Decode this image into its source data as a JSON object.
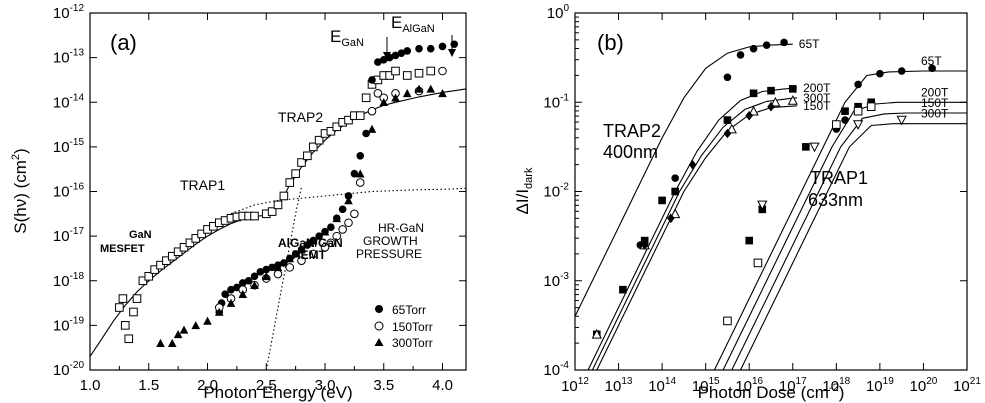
{
  "chart_data": [
    {
      "panel": "(a)",
      "type": "scatter",
      "xlabel_text": "Photon Energy (eV)",
      "ylabel": {
        "base": "S(hν) (cm",
        "sup": "2",
        "tail": ")"
      },
      "xlim": [
        1.0,
        4.2
      ],
      "ylim_log10": [
        -20,
        -12
      ],
      "y_scale": "log",
      "x_ticks": [
        "1.0",
        "1.5",
        "2.0",
        "2.5",
        "3.0",
        "3.5",
        "4.0"
      ],
      "x_tick_values": [
        1.0,
        1.5,
        2.0,
        2.5,
        3.0,
        3.5,
        4.0
      ],
      "y_tick_exponents": [
        -20,
        -19,
        -18,
        -17,
        -16,
        -15,
        -14,
        -13,
        -12
      ],
      "annotations": {
        "e_gan": {
          "main": "E",
          "sub": "GaN"
        },
        "e_algan": {
          "main": "E",
          "sub": "AlGaN"
        },
        "trap1": "TRAP1",
        "trap2": "TRAP2",
        "gan_line1": "GaN",
        "gan_line2": "MESFET",
        "algan_line1": "AlGaN/GaN",
        "algan_line2": "HEMT",
        "hr_line1": "HR-GaN",
        "hr_line2": "GROWTH",
        "hr_line3": "PRESSURE"
      },
      "legend": [
        {
          "label": "65Torr",
          "marker": "filled-circle"
        },
        {
          "label": "150Torr",
          "marker": "open-circle"
        },
        {
          "label": "300Torr",
          "marker": "filled-triangle"
        }
      ],
      "series": [
        {
          "marker": "open-square",
          "x": [
            1.25,
            1.28,
            1.3,
            1.33,
            1.37,
            1.4,
            1.45,
            1.5,
            1.55,
            1.6,
            1.65,
            1.7,
            1.75,
            1.8,
            1.85,
            1.9,
            1.95,
            2.0,
            2.05,
            2.1,
            2.15,
            2.2,
            2.25,
            2.3,
            2.35,
            2.4,
            2.5,
            2.55,
            2.6,
            2.65,
            2.7,
            2.75,
            2.8,
            2.85,
            2.9,
            2.95,
            3.0,
            3.05,
            3.1,
            3.15,
            3.2,
            3.25,
            3.3,
            3.35,
            3.4,
            3.45,
            3.5,
            3.55,
            3.6,
            3.7,
            3.8,
            3.9
          ],
          "logy": [
            -18.6,
            -18.4,
            -19.0,
            -19.3,
            -18.7,
            -18.4,
            -18.0,
            -17.9,
            -17.75,
            -17.65,
            -17.55,
            -17.45,
            -17.35,
            -17.25,
            -17.15,
            -17.05,
            -16.95,
            -16.85,
            -16.78,
            -16.7,
            -16.65,
            -16.6,
            -16.57,
            -16.55,
            -16.55,
            -16.55,
            -16.5,
            -16.45,
            -16.3,
            -16.1,
            -15.8,
            -15.6,
            -15.35,
            -15.2,
            -15.0,
            -14.85,
            -14.7,
            -14.65,
            -14.55,
            -14.45,
            -14.4,
            -14.3,
            -14.3,
            -13.9,
            -13.6,
            -13.5,
            -13.4,
            -13.4,
            -13.3,
            -13.4,
            -13.35,
            -13.3
          ]
        },
        {
          "marker": "filled-circle",
          "x": [
            2.1,
            2.12,
            2.15,
            2.2,
            2.25,
            2.3,
            2.35,
            2.4,
            2.45,
            2.5,
            2.55,
            2.6,
            2.65,
            2.7,
            2.75,
            2.8,
            2.85,
            2.9,
            2.95,
            3.0,
            3.05,
            3.1,
            3.15,
            3.2,
            3.25,
            3.3,
            3.35,
            3.4,
            3.45,
            3.5,
            3.55,
            3.6,
            3.65,
            3.7,
            3.8,
            3.9,
            4.0,
            4.1
          ],
          "logy": [
            -18.7,
            -18.5,
            -18.3,
            -18.2,
            -18.15,
            -18.05,
            -18.0,
            -17.9,
            -17.8,
            -17.75,
            -17.7,
            -17.65,
            -17.6,
            -17.5,
            -17.4,
            -17.3,
            -17.2,
            -17.1,
            -17.0,
            -16.9,
            -16.8,
            -16.6,
            -16.4,
            -16.1,
            -15.6,
            -15.2,
            -14.7,
            -13.5,
            -13.1,
            -13.05,
            -13.0,
            -12.95,
            -12.9,
            -12.85,
            -12.8,
            -12.8,
            -12.75,
            -12.7
          ]
        },
        {
          "marker": "open-circle",
          "x": [
            2.1,
            2.2,
            2.3,
            2.4,
            2.5,
            2.6,
            2.7,
            2.8,
            2.9,
            3.0,
            3.05,
            3.1,
            3.15,
            3.2,
            3.25,
            3.3,
            3.4,
            3.45,
            3.5,
            3.6,
            3.8,
            4.0
          ],
          "logy": [
            -18.6,
            -18.4,
            -18.2,
            -18.1,
            -17.95,
            -17.85,
            -17.7,
            -17.55,
            -17.4,
            -17.25,
            -17.15,
            -17.0,
            -16.85,
            -16.7,
            -16.5,
            -15.8,
            -14.2,
            -13.8,
            -13.9,
            -13.8,
            -13.75,
            -13.3
          ]
        },
        {
          "marker": "filled-triangle",
          "x": [
            1.6,
            1.7,
            1.75,
            1.8,
            1.9,
            2.0,
            2.1,
            2.2,
            2.3,
            2.4,
            2.5,
            2.6,
            2.7,
            2.8,
            2.9,
            3.0,
            3.1,
            3.2,
            3.3,
            3.4,
            3.5,
            3.6,
            3.7,
            3.8,
            3.9,
            4.0
          ],
          "logy": [
            -19.4,
            -19.4,
            -19.2,
            -19.1,
            -19.0,
            -18.9,
            -18.7,
            -18.5,
            -18.3,
            -18.1,
            -17.9,
            -17.7,
            -17.5,
            -17.3,
            -17.1,
            -16.9,
            -16.6,
            -16.2,
            -15.6,
            -14.6,
            -14.0,
            -13.9,
            -13.8,
            -13.7,
            -13.7,
            -13.8
          ]
        }
      ],
      "fit_curves": [
        {
          "style": "solid",
          "x": [
            1.0,
            1.1,
            1.2,
            1.3,
            1.4,
            1.5,
            1.6,
            1.7,
            1.8,
            1.9,
            2.0,
            2.1,
            2.2,
            2.3,
            2.4,
            2.5,
            2.55,
            2.6,
            2.65,
            2.7,
            2.75,
            2.8,
            2.9,
            3.0,
            3.1,
            3.2,
            3.3,
            3.4,
            3.5,
            3.6,
            3.8,
            4.0,
            4.2
          ],
          "logy": [
            -19.7,
            -19.3,
            -18.9,
            -18.55,
            -18.25,
            -18.0,
            -17.78,
            -17.58,
            -17.38,
            -17.18,
            -17.0,
            -16.85,
            -16.72,
            -16.62,
            -16.56,
            -16.53,
            -16.48,
            -16.35,
            -16.1,
            -15.85,
            -15.65,
            -15.45,
            -15.12,
            -14.85,
            -14.62,
            -14.45,
            -14.3,
            -14.17,
            -14.07,
            -14.0,
            -13.88,
            -13.78,
            -13.7
          ]
        },
        {
          "style": "dotted",
          "x": [
            2.2,
            2.4,
            2.6,
            2.8,
            3.0,
            3.2,
            3.4,
            3.6,
            3.8,
            4.0,
            4.2
          ],
          "logy": [
            -16.5,
            -16.3,
            -16.2,
            -16.15,
            -16.1,
            -16.05,
            -16.0,
            -15.98,
            -15.96,
            -15.95,
            -15.93
          ]
        },
        {
          "style": "dotted",
          "x": [
            2.5,
            2.55,
            2.6,
            2.65,
            2.7,
            2.75,
            2.8
          ],
          "logy": [
            -20.0,
            -19.3,
            -18.6,
            -17.9,
            -17.2,
            -16.5,
            -15.9
          ]
        }
      ]
    },
    {
      "panel": "(b)",
      "type": "scatter",
      "xlabel": {
        "base": "Photon Dose (cm",
        "sup": "-2",
        "tail": ")"
      },
      "ylabel": {
        "main": "ΔI/I",
        "sub": "dark"
      },
      "x_scale": "log",
      "y_scale": "log",
      "xlim_log10": [
        12,
        21
      ],
      "ylim_log10": [
        -4,
        0
      ],
      "x_tick_exponents": [
        12,
        13,
        14,
        15,
        16,
        17,
        18,
        19,
        20,
        21
      ],
      "y_tick_exponents": [
        -4,
        -3,
        -2,
        -1,
        0
      ],
      "annotations": {
        "trap2_line1": "TRAP2",
        "trap2_line2": "400nm",
        "trap1_line1": "TRAP1",
        "trap1_line2": "633nm"
      },
      "series": [
        {
          "name": "65T",
          "group": "TRAP2",
          "marker": "filled-circle",
          "logx": [
            13.5,
            14.3,
            15.5,
            15.8,
            16.1,
            16.4,
            16.8
          ],
          "logy": [
            -2.6,
            -1.85,
            -0.72,
            -0.47,
            -0.4,
            -0.36,
            -0.33
          ]
        },
        {
          "name": "200T",
          "group": "TRAP2",
          "marker": "filled-square",
          "logx": [
            12.5,
            13.1,
            13.6,
            14.0,
            14.3,
            15.5,
            16.1,
            16.5,
            17.0
          ],
          "logy": [
            -3.6,
            -3.1,
            -2.55,
            -2.1,
            -2.0,
            -1.2,
            -0.9,
            -0.87,
            -0.85
          ]
        },
        {
          "name": "300T",
          "group": "TRAP2",
          "marker": "open-triangle",
          "logx": [
            12.5,
            13.6,
            14.3,
            15.6,
            16.1,
            16.6,
            17.0
          ],
          "logy": [
            -3.6,
            -2.6,
            -2.25,
            -1.3,
            -1.1,
            -1.0,
            -0.98
          ]
        },
        {
          "name": "150T",
          "group": "TRAP2",
          "marker": "filled-diamond",
          "logx": [
            13.6,
            14.2,
            14.7,
            15.5,
            16.0,
            16.5
          ],
          "logy": [
            -2.6,
            -2.3,
            -1.7,
            -1.35,
            -1.15,
            -1.05
          ]
        },
        {
          "name": "65T",
          "group": "TRAP1",
          "marker": "filled-circle",
          "logx": [
            18.0,
            18.2,
            18.5,
            19.0,
            19.5,
            20.2
          ],
          "logy": [
            -1.3,
            -1.2,
            -0.8,
            -0.68,
            -0.65,
            -0.62
          ]
        },
        {
          "name": "200T",
          "group": "TRAP1",
          "marker": "filled-square",
          "logx": [
            16.0,
            16.3,
            17.3,
            18.2,
            18.5,
            18.8
          ],
          "logy": [
            -2.55,
            -2.2,
            -1.5,
            -1.1,
            -1.05,
            -1.0
          ]
        },
        {
          "name": "150T",
          "group": "TRAP1",
          "marker": "open-triangle-down",
          "logx": [
            16.3,
            17.5,
            18.5,
            19.5
          ],
          "logy": [
            -2.15,
            -1.5,
            -1.25,
            -1.2
          ]
        },
        {
          "name": "300T",
          "group": "TRAP1",
          "marker": "open-square",
          "logx": [
            15.5,
            16.2,
            18.0,
            18.5,
            18.8
          ],
          "logy": [
            -3.45,
            -2.8,
            -1.25,
            -1.1,
            -1.05
          ]
        }
      ],
      "fit_curves": [
        {
          "logx": [
            12.0,
            12.5,
            13.0,
            13.5,
            14.0,
            14.5,
            15.0,
            15.5,
            16.0,
            16.5,
            17.0
          ],
          "logy": [
            -3.4,
            -2.9,
            -2.4,
            -1.9,
            -1.4,
            -0.95,
            -0.62,
            -0.45,
            -0.38,
            -0.36,
            -0.35
          ],
          "end_label": "65T"
        },
        {
          "logx": [
            12.3,
            12.8,
            13.3,
            13.8,
            14.3,
            14.8,
            15.3,
            15.8,
            16.3,
            16.8,
            17.1
          ],
          "logy": [
            -4.0,
            -3.5,
            -3.0,
            -2.5,
            -2.0,
            -1.55,
            -1.2,
            -0.98,
            -0.88,
            -0.85,
            -0.84
          ],
          "end_label": "200T"
        },
        {
          "logx": [
            12.4,
            12.9,
            13.4,
            13.9,
            14.4,
            14.9,
            15.4,
            15.9,
            16.4,
            16.9,
            17.1
          ],
          "logy": [
            -4.0,
            -3.5,
            -3.0,
            -2.5,
            -2.0,
            -1.6,
            -1.28,
            -1.08,
            -0.99,
            -0.96,
            -0.95
          ],
          "end_label": "300T"
        },
        {
          "logx": [
            12.5,
            13.0,
            13.5,
            14.0,
            14.5,
            15.0,
            15.5,
            16.0,
            16.5,
            17.1
          ],
          "logy": [
            -4.0,
            -3.5,
            -3.0,
            -2.5,
            -2.0,
            -1.62,
            -1.32,
            -1.14,
            -1.06,
            -1.04
          ],
          "end_label": "150T"
        },
        {
          "logx": [
            15.2,
            15.7,
            16.2,
            16.7,
            17.2,
            17.7,
            18.2,
            18.7,
            19.2,
            20.0,
            21.0
          ],
          "logy": [
            -4.0,
            -3.5,
            -3.0,
            -2.5,
            -2.0,
            -1.5,
            -1.0,
            -0.7,
            -0.66,
            -0.65,
            -0.65
          ],
          "end_label": "65T"
        },
        {
          "logx": [
            15.4,
            15.9,
            16.4,
            16.9,
            17.4,
            17.9,
            18.4,
            18.9,
            19.4,
            20.0,
            21.0
          ],
          "logy": [
            -4.0,
            -3.5,
            -3.0,
            -2.5,
            -2.0,
            -1.5,
            -1.1,
            -1.02,
            -1.0,
            -1.0,
            -1.0
          ],
          "end_label": "200T"
        },
        {
          "logx": [
            15.6,
            16.1,
            16.6,
            17.1,
            17.6,
            18.1,
            18.6,
            19.1,
            19.6,
            20.2,
            21.0
          ],
          "logy": [
            -4.0,
            -3.5,
            -3.0,
            -2.5,
            -2.0,
            -1.5,
            -1.18,
            -1.13,
            -1.12,
            -1.12,
            -1.12
          ],
          "end_label": "150T"
        },
        {
          "logx": [
            15.8,
            16.3,
            16.8,
            17.3,
            17.8,
            18.3,
            18.8,
            19.3,
            19.8,
            20.4,
            21.0
          ],
          "logy": [
            -4.0,
            -3.5,
            -3.0,
            -2.5,
            -2.0,
            -1.5,
            -1.26,
            -1.24,
            -1.24,
            -1.24,
            -1.24
          ],
          "end_label": "300T"
        }
      ]
    }
  ]
}
